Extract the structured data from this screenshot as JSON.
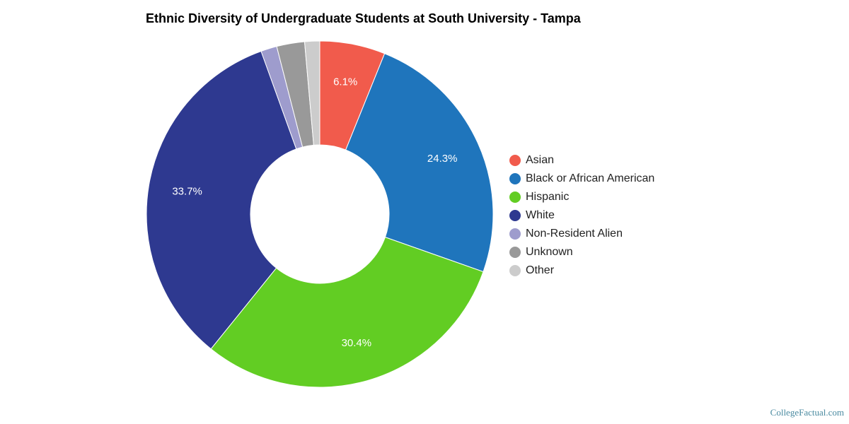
{
  "chart_data": {
    "type": "pie",
    "title": "Ethnic Diversity of Undergraduate Students at South University - Tampa",
    "donut": true,
    "legend_position": "right",
    "slices": [
      {
        "name": "Asian",
        "value": 6.1,
        "label": "6.1%",
        "color": "#f15b4c"
      },
      {
        "name": "Black or African American",
        "value": 24.3,
        "label": "24.3%",
        "color": "#1f75bc"
      },
      {
        "name": "Hispanic",
        "value": 30.4,
        "label": "30.4%",
        "color": "#62cd23"
      },
      {
        "name": "White",
        "value": 33.7,
        "label": "33.7%",
        "color": "#2e3990"
      },
      {
        "name": "Non-Resident Alien",
        "value": 1.5,
        "label": "",
        "color": "#9e9ccd"
      },
      {
        "name": "Unknown",
        "value": 2.6,
        "label": "",
        "color": "#999999"
      },
      {
        "name": "Other",
        "value": 1.4,
        "label": "",
        "color": "#cccccc"
      }
    ]
  },
  "watermark": "CollegeFactual.com"
}
